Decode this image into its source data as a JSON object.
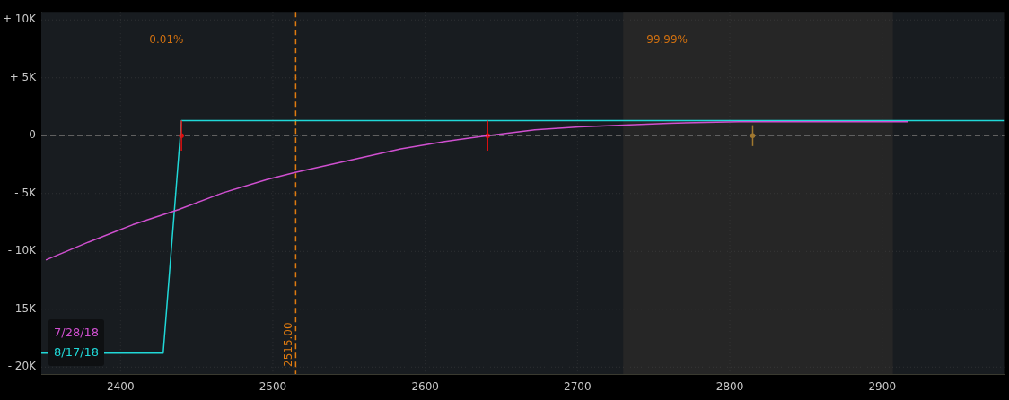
{
  "chart_data": {
    "type": "line",
    "x": [
      2348,
      2428,
      2440,
      2980
    ],
    "series": [
      {
        "name": "7/28/18",
        "color": "#d050d0",
        "x": [
          2351,
          2379,
          2408,
          2438,
          2467,
          2496,
          2514,
          2555,
          2584,
          2613,
          2641,
          2672,
          2701,
          2760,
          2806,
          2917
        ],
        "values": [
          -10750,
          -9200,
          -7700,
          -6400,
          -4950,
          -3800,
          -3200,
          -2000,
          -1150,
          -500,
          0,
          500,
          760,
          1070,
          1200,
          1200
        ]
      },
      {
        "name": "8/17/18",
        "color": "#20d8d8",
        "values": [
          -18800,
          -18800,
          1300,
          1300
        ]
      },
      {
        "type": "scatter",
        "marker": "circle",
        "x": [
          2440,
          2641,
          2815
        ],
        "values": [
          0,
          0,
          0
        ],
        "errors": [
          1300,
          1300,
          900
        ],
        "colors": [
          "#e01010",
          "#e01010",
          "#a07830"
        ]
      }
    ],
    "xlim": [
      2348,
      2980
    ],
    "xticks": [
      2400,
      2500,
      2600,
      2700,
      2800,
      2900
    ],
    "ylim": [
      -20600,
      10700
    ],
    "yticks": [
      {
        "value": 10000,
        "label": "+ 10K"
      },
      {
        "value": 5000,
        "label": "+ 5K"
      },
      0,
      {
        "value": -5000,
        "label": "- 5K"
      },
      {
        "value": -10000,
        "label": "- 10K"
      },
      {
        "value": -15000,
        "label": "- 15K"
      },
      {
        "value": -20000,
        "label": "- 20K"
      }
    ],
    "ref_lines": [
      {
        "axis": "x",
        "value": 2515,
        "label": "2515.00",
        "color": "#e07b10",
        "line_style": "dashed"
      },
      {
        "axis": "y",
        "value": 0,
        "color": "#606060",
        "line_style": "dashed"
      }
    ],
    "bands": [
      {
        "axis": "x",
        "from": 2730,
        "to": 2907,
        "color": "#262626"
      }
    ],
    "annotations": [
      "0.01%",
      "99.99%"
    ],
    "grid": true,
    "legend": "bottom left",
    "line_style": "solid"
  }
}
